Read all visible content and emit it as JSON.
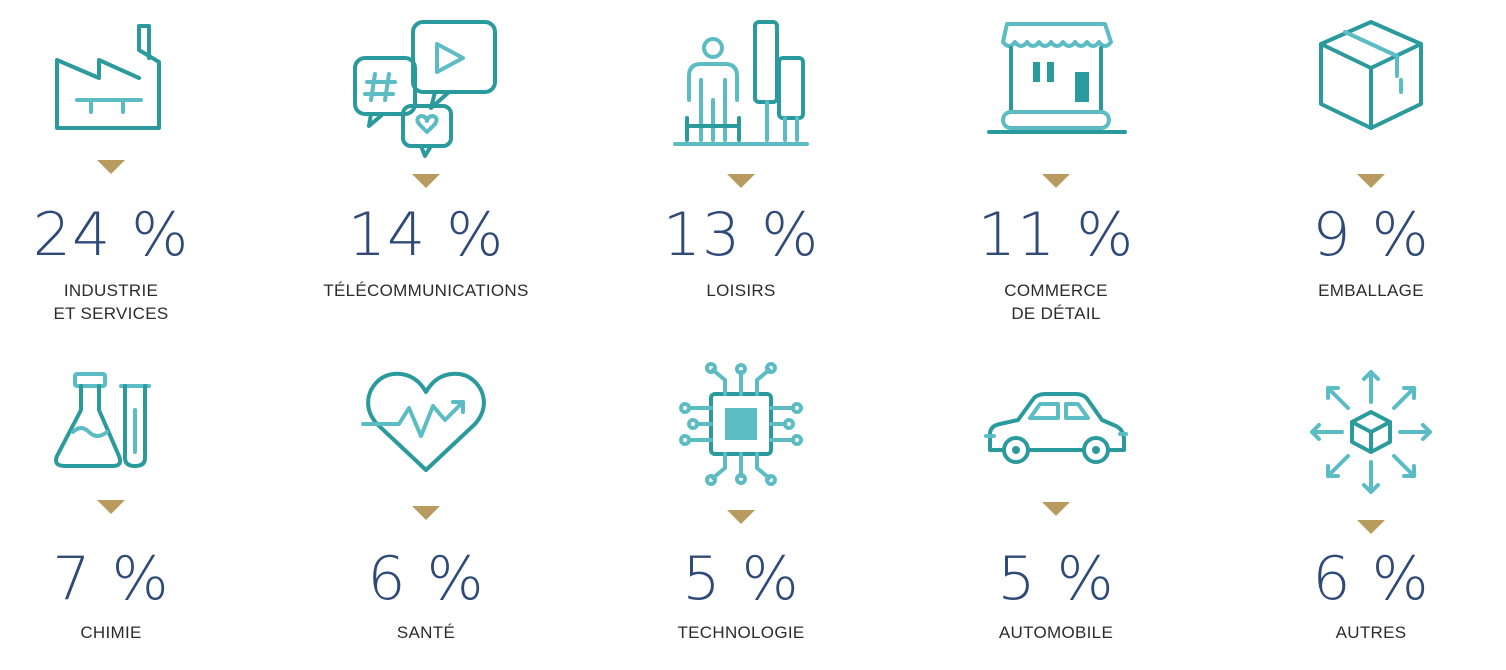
{
  "colors": {
    "teal": "#2a9a9c",
    "light_teal": "#5bbcc4",
    "gold": "#b89b5e",
    "navy": "#2f4a78"
  },
  "sectors": [
    {
      "icon": "factory-icon",
      "value": "24 %",
      "label": "INDUSTRIE\nET SERVICES"
    },
    {
      "icon": "social-media-icon",
      "value": "14 %",
      "label": "TÉLÉCOMMUNICATIONS"
    },
    {
      "icon": "leisure-icon",
      "value": "13 %",
      "label": "LOISIRS"
    },
    {
      "icon": "storefront-icon",
      "value": "11 %",
      "label": "COMMERCE\nDE DÉTAIL"
    },
    {
      "icon": "package-box-icon",
      "value": "9 %",
      "label": "EMBALLAGE"
    },
    {
      "icon": "lab-flask-icon",
      "value": "7 %",
      "label": "CHIMIE"
    },
    {
      "icon": "heart-pulse-icon",
      "value": "6 %",
      "label": "SANTÉ"
    },
    {
      "icon": "microchip-icon",
      "value": "5 %",
      "label": "TECHNOLOGIE"
    },
    {
      "icon": "car-icon",
      "value": "5 %",
      "label": "AUTOMOBILE"
    },
    {
      "icon": "distribution-icon",
      "value": "6 %",
      "label": "AUTRES"
    }
  ]
}
